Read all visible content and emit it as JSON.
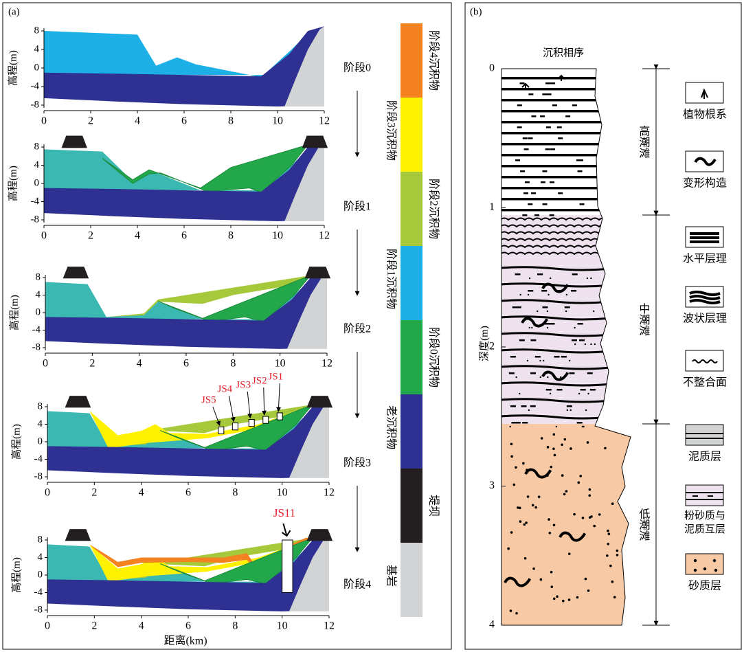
{
  "panel_a": {
    "label": "(a)",
    "x_label": "距离(km)",
    "y_label": "高程(m)",
    "xlim": [
      0,
      12
    ],
    "ylim": [
      -8,
      8
    ],
    "xticks": [
      0,
      2,
      4,
      6,
      8,
      10,
      12
    ],
    "yticks": [
      -8,
      -4,
      0,
      4,
      8
    ],
    "stages": [
      "阶段0",
      "阶段1",
      "阶段2",
      "阶段3",
      "阶段4"
    ],
    "wells": [
      "JS5",
      "JS4",
      "JS3",
      "JS2",
      "JS1"
    ],
    "well_js11": "JS11",
    "legend": [
      {
        "label": "阶段4沉积物",
        "color": "#f58220"
      },
      {
        "label": "阶段3沉积物",
        "color": "#fff200"
      },
      {
        "label": "阶段2沉积物",
        "color": "#a6c93c"
      },
      {
        "label": "阶段1沉积物",
        "color": "#1cb0e6"
      },
      {
        "label": "阶段0沉积物",
        "color": "#22a84a"
      },
      {
        "label": "老沉积物",
        "color": "#2e3192"
      },
      {
        "label": "堤坝",
        "color": "#231f20"
      },
      {
        "label": "基岩",
        "color": "#d1d3d4"
      }
    ]
  },
  "panel_b": {
    "label": "(b)",
    "title": "沉积相序",
    "y_label": "深度(m)",
    "yticks": [
      0,
      1,
      2,
      3,
      4
    ],
    "ylim": [
      0,
      4
    ],
    "zones": [
      "高潮滩",
      "中潮滩",
      "低潮滩"
    ],
    "legend": [
      "植物根系",
      "变形构造",
      "水平层理",
      "波状层理",
      "不整合面",
      "泥质层",
      "粉砂质与泥质互层",
      "砂质层"
    ]
  }
}
